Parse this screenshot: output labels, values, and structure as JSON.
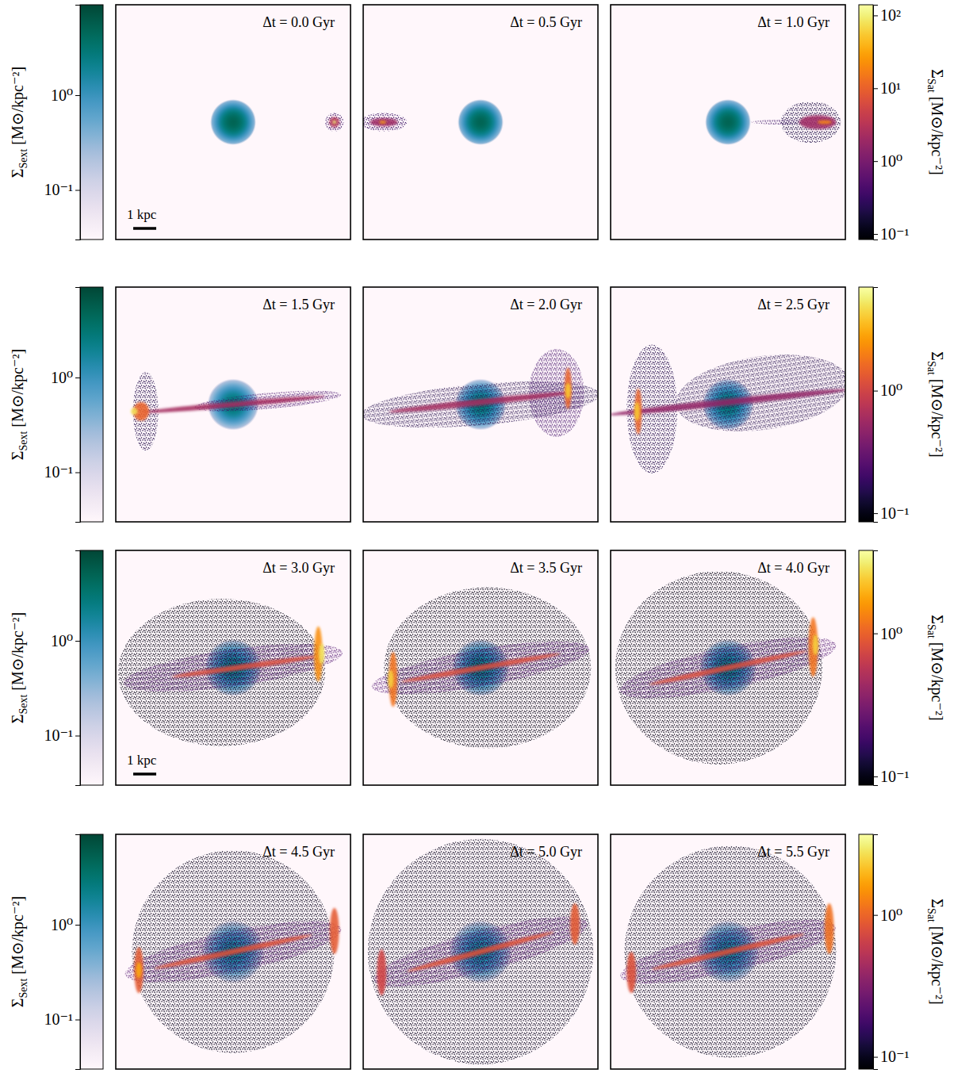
{
  "chart_data": {
    "type": "density_maps",
    "xlim": [
      -5.1,
      5.1
    ],
    "ylim": [
      -5.1,
      5.1
    ],
    "tick_labels": false,
    "host_colorbar": {
      "label": {
        "text": "Σ",
        "sub": "Sext",
        "unit": " [M⊙/kpc⁻²]"
      },
      "range": [
        0.03,
        9
      ],
      "log": true,
      "ticks": [
        {
          "value": 0.1,
          "label": "10⁻¹"
        },
        {
          "value": 1,
          "label": "10⁰"
        }
      ]
    },
    "rows": [
      {
        "sat_colorbar": {
          "label": {
            "text": "Σ",
            "sub": "Sat",
            "unit": " [M⊙/kpc⁻²]"
          },
          "range": [
            0.084,
            140
          ],
          "log": true,
          "ticks": [
            {
              "value": 0.1,
              "label": "10⁻¹"
            },
            {
              "value": 1,
              "label": "10⁰"
            },
            {
              "value": 10,
              "label": "10¹"
            },
            {
              "value": 100,
              "label": "10²"
            }
          ]
        },
        "panels": [
          {
            "title": "Δt = 0.0 Gyr",
            "scale_bar": {
              "length": 1,
              "label": "1 kpc"
            },
            "host": {
              "x": 0,
              "y": 0,
              "peak": 5,
              "radius": 0.4
            },
            "satellite": [
              {
                "x": 4.4,
                "y": 0,
                "rx": 0.4,
                "ry": 0.4,
                "angle": 0,
                "density": 0.3
              },
              {
                "x": 4.4,
                "y": 0,
                "rx": 0.22,
                "ry": 0.22,
                "angle": 0,
                "density": 3
              },
              {
                "x": 4.4,
                "y": 0,
                "rx": 0.08,
                "ry": 0.08,
                "angle": 0,
                "density": 100
              }
            ]
          },
          {
            "title": "Δt = 0.5 Gyr",
            "host": {
              "x": 0,
              "y": 0,
              "peak": 5,
              "radius": 0.4
            },
            "satellite": [
              {
                "x": -4.2,
                "y": 0,
                "rx": 1.0,
                "ry": 0.4,
                "angle": 0,
                "density": 0.3
              },
              {
                "x": -4.2,
                "y": 0,
                "rx": 0.6,
                "ry": 0.18,
                "angle": 0,
                "density": 2
              },
              {
                "x": -4.25,
                "y": 0,
                "rx": 0.15,
                "ry": 0.06,
                "angle": 0,
                "density": 30
              }
            ]
          },
          {
            "title": "Δt = 1.0 Gyr",
            "host": {
              "x": 0,
              "y": 0,
              "peak": 5,
              "radius": 0.4
            },
            "satellite": [
              {
                "x": 3.6,
                "y": 0,
                "rx": 1.3,
                "ry": 0.9,
                "angle": 0,
                "density": 0.2
              },
              {
                "x": 2.2,
                "y": 0,
                "rx": 1.2,
                "ry": 0.1,
                "angle": 0,
                "density": 0.3
              },
              {
                "x": 3.9,
                "y": 0,
                "rx": 0.8,
                "ry": 0.3,
                "angle": 0,
                "density": 2
              },
              {
                "x": 4.2,
                "y": 0,
                "rx": 0.3,
                "ry": 0.08,
                "angle": 0,
                "density": 20
              }
            ]
          }
        ]
      },
      {
        "sat_colorbar": {
          "label": {
            "text": "Σ",
            "sub": "Sat",
            "unit": " [M⊙/kpc⁻²]"
          },
          "range": [
            0.085,
            7
          ],
          "log": true,
          "ticks": [
            {
              "value": 0.1,
              "label": "10⁻¹"
            },
            {
              "value": 1,
              "label": "10⁰"
            }
          ]
        },
        "panels": [
          {
            "title": "Δt = 1.5 Gyr",
            "host": {
              "x": 0,
              "y": 0,
              "peak": 3,
              "radius": 0.45
            },
            "satellite": [
              {
                "x": -3.8,
                "y": -0.3,
                "rx": 0.55,
                "ry": 1.7,
                "angle": 0,
                "density": 0.15
              },
              {
                "x": 1.5,
                "y": 0.15,
                "rx": 3.2,
                "ry": 0.35,
                "angle": 5,
                "density": 0.2
              },
              {
                "x": 0,
                "y": 0,
                "rx": 4.0,
                "ry": 0.12,
                "angle": 5,
                "density": 0.6
              },
              {
                "x": -4.0,
                "y": -0.3,
                "rx": 0.35,
                "ry": 0.4,
                "angle": 0,
                "density": 1.5
              },
              {
                "x": -4.3,
                "y": -0.3,
                "rx": 0.15,
                "ry": 0.15,
                "angle": 0,
                "density": 5
              }
            ]
          },
          {
            "title": "Δt = 2.0 Gyr",
            "host": {
              "x": 0,
              "y": 0,
              "peak": 3,
              "radius": 0.45
            },
            "satellite": [
              {
                "x": 0,
                "y": 0,
                "rx": 5.2,
                "ry": 0.9,
                "angle": 5,
                "density": 0.15
              },
              {
                "x": 3.3,
                "y": 0.5,
                "rx": 1.2,
                "ry": 1.9,
                "angle": 0,
                "density": 0.2
              },
              {
                "x": 0,
                "y": 0.1,
                "rx": 4.0,
                "ry": 0.14,
                "angle": 6,
                "density": 0.6
              },
              {
                "x": 3.8,
                "y": 0.7,
                "rx": 0.15,
                "ry": 0.9,
                "angle": 0,
                "density": 1.5
              },
              {
                "x": 3.8,
                "y": 0.6,
                "rx": 0.12,
                "ry": 0.35,
                "angle": 0,
                "density": 4
              }
            ]
          },
          {
            "title": "Δt = 2.5 Gyr",
            "host": {
              "x": 0,
              "y": 0,
              "peak": 3,
              "radius": 0.45
            },
            "satellite": [
              {
                "x": -3.3,
                "y": -0.2,
                "rx": 1.1,
                "ry": 2.8,
                "angle": 0,
                "density": 0.15
              },
              {
                "x": 1.5,
                "y": 0.5,
                "rx": 3.8,
                "ry": 1.6,
                "angle": 8,
                "density": 0.15
              },
              {
                "x": 0,
                "y": 0.1,
                "rx": 5.2,
                "ry": 0.15,
                "angle": 6,
                "density": 0.5
              },
              {
                "x": -3.9,
                "y": -0.3,
                "rx": 0.15,
                "ry": 1.0,
                "angle": 0,
                "density": 1.5
              },
              {
                "x": -3.95,
                "y": -0.3,
                "rx": 0.12,
                "ry": 0.4,
                "angle": 0,
                "density": 4
              }
            ]
          }
        ]
      },
      {
        "sat_colorbar": {
          "label": {
            "text": "Σ",
            "sub": "Sat",
            "unit": " [M⊙/kpc⁻²]"
          },
          "range": [
            0.087,
            3.8
          ],
          "log": true,
          "ticks": [
            {
              "value": 0.1,
              "label": "10⁻¹"
            },
            {
              "value": 1,
              "label": "10⁰"
            }
          ]
        },
        "panels": [
          {
            "title": "Δt = 3.0 Gyr",
            "scale_bar": {
              "length": 1,
              "label": "1 kpc"
            },
            "host": {
              "x": 0,
              "y": 0,
              "peak": 2.5,
              "radius": 0.5
            },
            "satellite": [
              {
                "x": -0.5,
                "y": -0.2,
                "rx": 4.5,
                "ry": 3.2,
                "angle": 0,
                "density": 0.1
              },
              {
                "x": 0,
                "y": 0,
                "rx": 4.8,
                "ry": 0.8,
                "angle": 8,
                "density": 0.2
              },
              {
                "x": 0.5,
                "y": 0.05,
                "rx": 3.2,
                "ry": 0.12,
                "angle": 8,
                "density": 0.8
              },
              {
                "x": 3.7,
                "y": 0.6,
                "rx": 0.18,
                "ry": 1.2,
                "angle": 0,
                "density": 1.5
              },
              {
                "x": 3.85,
                "y": 0.6,
                "rx": 0.12,
                "ry": 0.45,
                "angle": 0,
                "density": 3
              }
            ]
          },
          {
            "title": "Δt = 3.5 Gyr",
            "host": {
              "x": 0,
              "y": 0,
              "peak": 2.5,
              "radius": 0.5
            },
            "satellite": [
              {
                "x": 0.3,
                "y": 0,
                "rx": 4.5,
                "ry": 3.5,
                "angle": 0,
                "density": 0.1
              },
              {
                "x": 0,
                "y": 0,
                "rx": 4.8,
                "ry": 0.8,
                "angle": 10,
                "density": 0.2
              },
              {
                "x": 0,
                "y": 0,
                "rx": 3.5,
                "ry": 0.12,
                "angle": 10,
                "density": 0.8
              },
              {
                "x": -3.8,
                "y": -0.5,
                "rx": 0.18,
                "ry": 1.2,
                "angle": 0,
                "density": 1.2
              },
              {
                "x": -3.9,
                "y": -0.5,
                "rx": 0.12,
                "ry": 0.4,
                "angle": 0,
                "density": 2.5
              }
            ]
          },
          {
            "title": "Δt = 4.0 Gyr",
            "host": {
              "x": 0,
              "y": 0,
              "peak": 2.5,
              "radius": 0.5
            },
            "satellite": [
              {
                "x": -0.4,
                "y": 0,
                "rx": 4.5,
                "ry": 4.2,
                "angle": 0,
                "density": 0.1
              },
              {
                "x": 0,
                "y": 0,
                "rx": 4.8,
                "ry": 0.9,
                "angle": 12,
                "density": 0.2
              },
              {
                "x": 0,
                "y": 0,
                "rx": 3.5,
                "ry": 0.12,
                "angle": 12,
                "density": 0.8
              },
              {
                "x": 3.7,
                "y": 0.9,
                "rx": 0.2,
                "ry": 1.3,
                "angle": 0,
                "density": 1.2
              },
              {
                "x": 3.8,
                "y": 1.0,
                "rx": 0.12,
                "ry": 0.45,
                "angle": 0,
                "density": 2.5
              }
            ]
          }
        ]
      },
      {
        "sat_colorbar": {
          "label": {
            "text": "Σ",
            "sub": "Sat",
            "unit": " [M⊙/kpc⁻²]"
          },
          "range": [
            0.082,
            3.7
          ],
          "log": true,
          "ticks": [
            {
              "value": 0.1,
              "label": "10⁻¹"
            },
            {
              "value": 1,
              "label": "10⁰"
            }
          ]
        },
        "panels": [
          {
            "title": "Δt = 4.5 Gyr",
            "host": {
              "x": 0,
              "y": 0,
              "peak": 2,
              "radius": 0.55
            },
            "satellite": [
              {
                "x": 0,
                "y": 0,
                "rx": 4.4,
                "ry": 4.4,
                "angle": 0,
                "density": 0.1
              },
              {
                "x": 0,
                "y": 0,
                "rx": 4.8,
                "ry": 0.9,
                "angle": 12,
                "density": 0.2
              },
              {
                "x": 0,
                "y": 0,
                "rx": 3.5,
                "ry": 0.12,
                "angle": 12,
                "density": 0.8
              },
              {
                "x": -4.1,
                "y": -0.8,
                "rx": 0.2,
                "ry": 1.0,
                "angle": 0,
                "density": 0.9
              },
              {
                "x": 4.4,
                "y": 0.9,
                "rx": 0.2,
                "ry": 1.0,
                "angle": 0,
                "density": 0.9
              },
              {
                "x": -4.1,
                "y": -0.8,
                "rx": 0.12,
                "ry": 0.35,
                "angle": 0,
                "density": 1.8
              }
            ]
          },
          {
            "title": "Δt = 5.0 Gyr",
            "host": {
              "x": 0,
              "y": 0,
              "peak": 2,
              "radius": 0.55
            },
            "satellite": [
              {
                "x": 0,
                "y": 0,
                "rx": 4.9,
                "ry": 4.9,
                "angle": 0,
                "density": 0.1
              },
              {
                "x": 0,
                "y": 0,
                "rx": 4.8,
                "ry": 0.9,
                "angle": 15,
                "density": 0.2
              },
              {
                "x": -4.3,
                "y": -0.9,
                "rx": 0.2,
                "ry": 1.0,
                "angle": 0,
                "density": 0.7
              },
              {
                "x": 0,
                "y": 0,
                "rx": 3.3,
                "ry": 0.12,
                "angle": 15,
                "density": 0.8
              },
              {
                "x": 4.1,
                "y": 1.2,
                "rx": 0.2,
                "ry": 0.9,
                "angle": 0,
                "density": 0.9
              }
            ]
          },
          {
            "title": "Δt = 5.5 Gyr",
            "host": {
              "x": 0,
              "y": 0,
              "peak": 2,
              "radius": 0.55
            },
            "satellite": [
              {
                "x": 0.1,
                "y": 0,
                "rx": 4.6,
                "ry": 4.6,
                "angle": 0,
                "density": 0.1
              },
              {
                "x": 0,
                "y": 0,
                "rx": 4.8,
                "ry": 0.9,
                "angle": 13,
                "density": 0.2
              },
              {
                "x": 0,
                "y": 0,
                "rx": 3.4,
                "ry": 0.12,
                "angle": 13,
                "density": 0.8
              },
              {
                "x": -4.2,
                "y": -0.9,
                "rx": 0.2,
                "ry": 0.9,
                "angle": 0,
                "density": 0.8
              },
              {
                "x": 4.4,
                "y": 1.0,
                "rx": 0.2,
                "ry": 1.1,
                "angle": 0,
                "density": 1.1
              }
            ]
          }
        ]
      }
    ]
  }
}
